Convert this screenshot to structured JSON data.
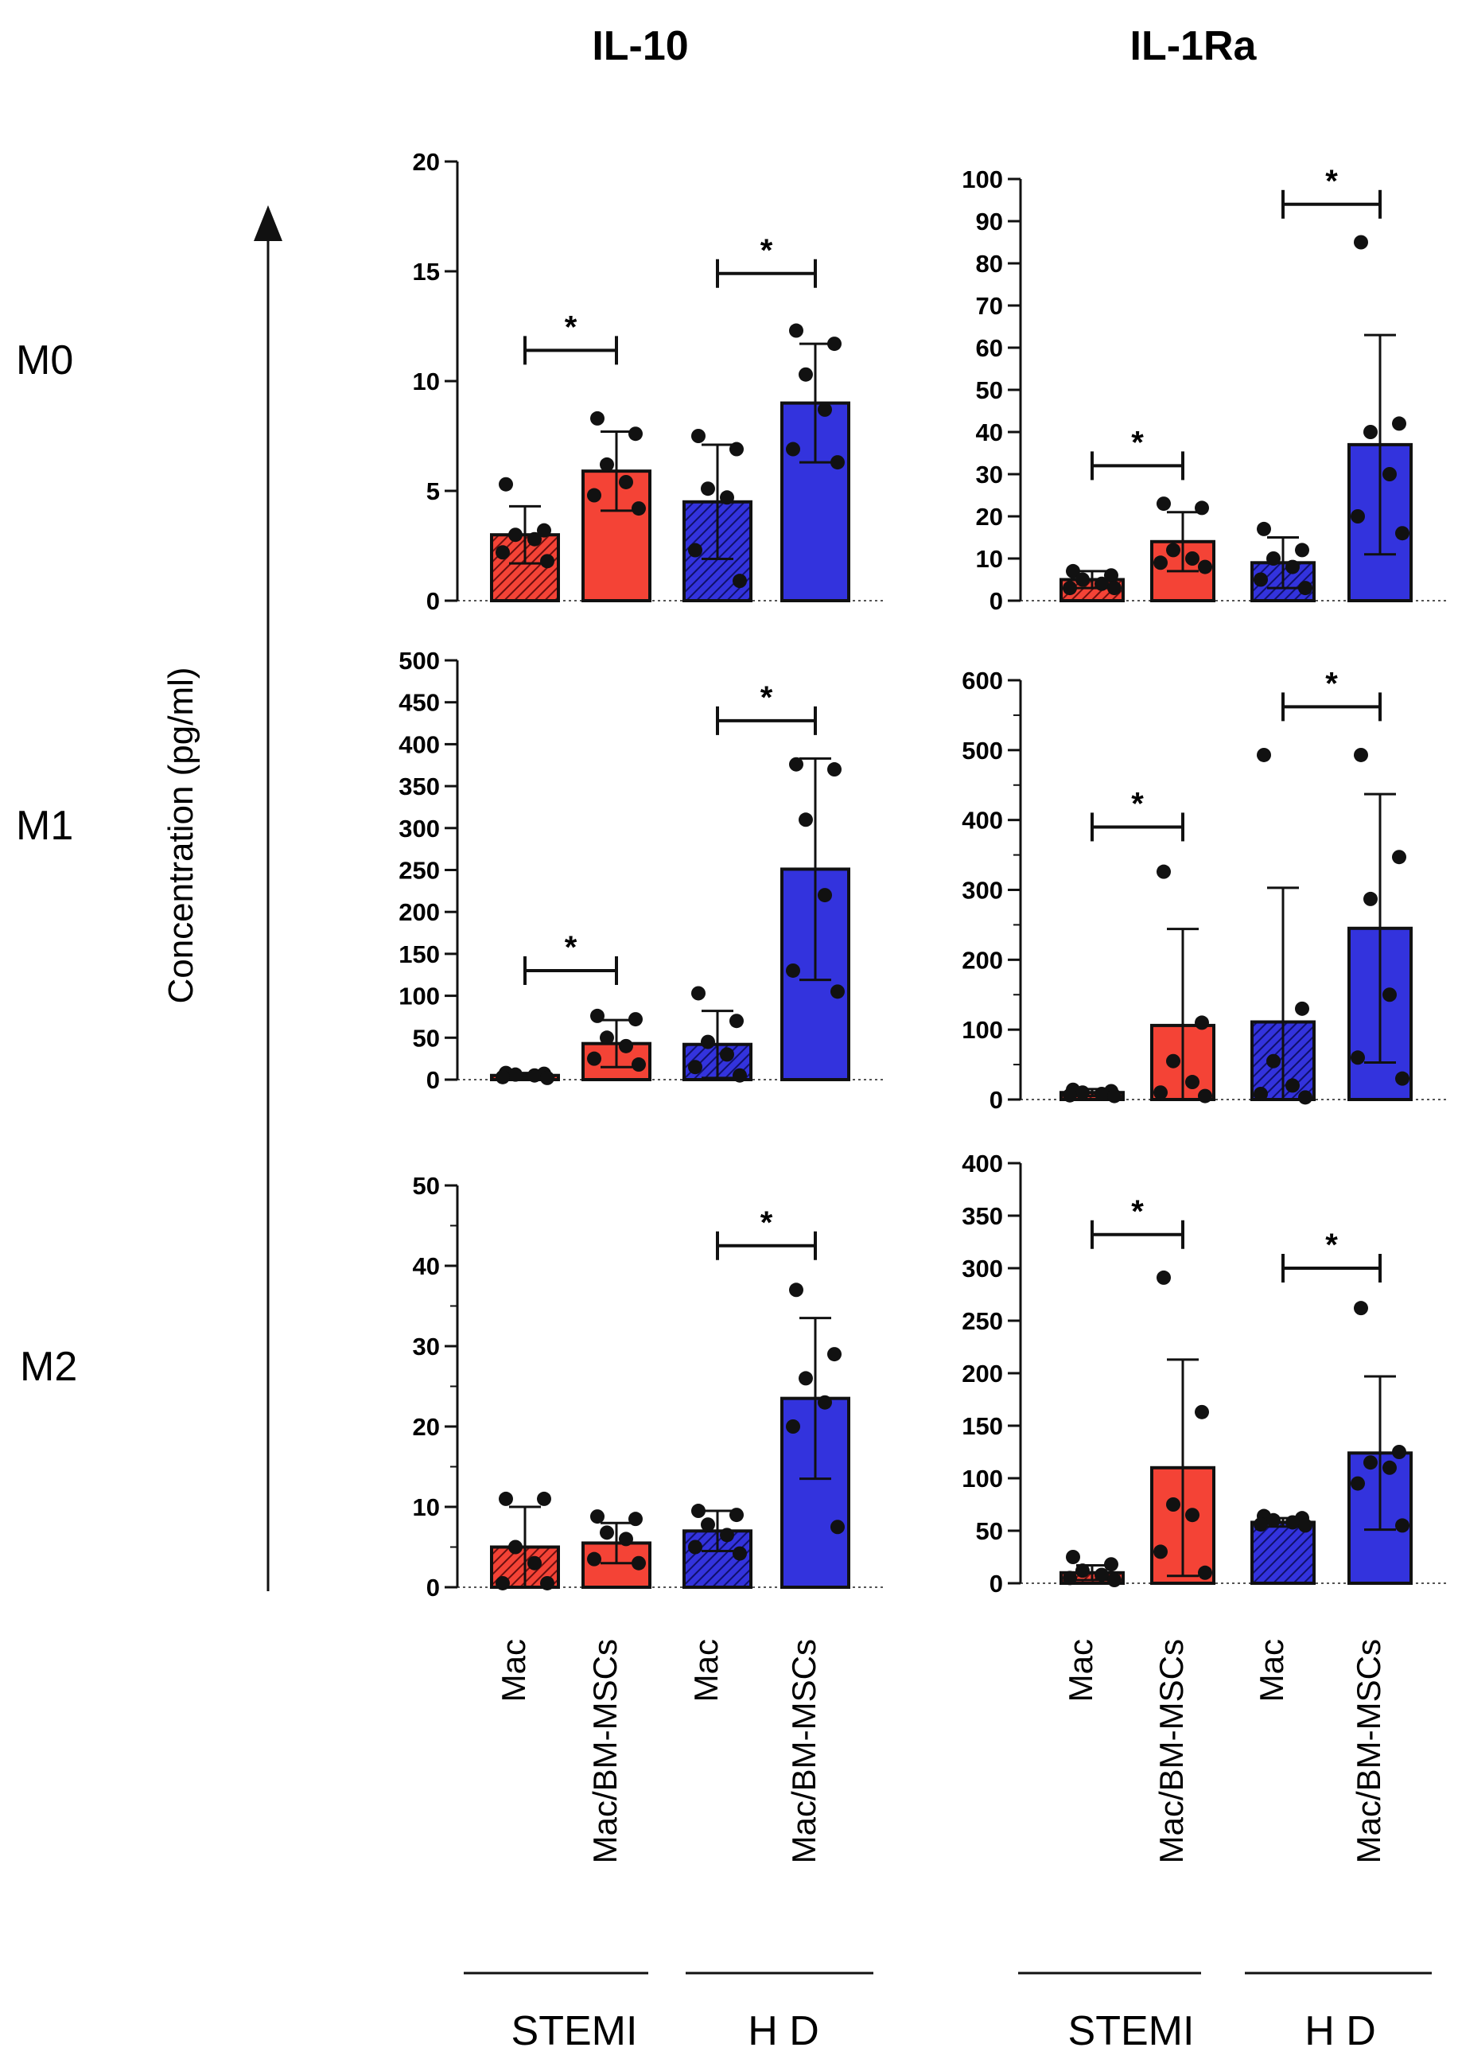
{
  "figure": {
    "column_titles": [
      "IL-10",
      "IL-1Ra"
    ],
    "row_labels": [
      "M0",
      "M1",
      "M2"
    ],
    "y_axis_label": "Concentration (pg/ml)",
    "x_categories": [
      "Mac",
      "Mac/BM-MSCs",
      "Mac",
      "Mac/BM-MSCs"
    ],
    "group_labels": [
      "STEMI",
      "H D"
    ],
    "significance_symbol": "*",
    "colors": {
      "stemi": "#f44336",
      "hd": "#3333dd",
      "edge": "#111111"
    }
  },
  "chart_data": [
    {
      "type": "bar",
      "title": "IL-10 M0",
      "ylim": [
        0,
        20
      ],
      "yticks": [
        0,
        5,
        10,
        15,
        20
      ],
      "minor_ticks": 0,
      "categories": [
        "Mac (STEMI)",
        "Mac/BM-MSCs (STEMI)",
        "Mac (H D)",
        "Mac/BM-MSCs (H D)"
      ],
      "values": [
        3.0,
        5.9,
        4.5,
        9.0
      ],
      "errors": [
        1.3,
        1.8,
        2.6,
        2.7
      ],
      "points": [
        [
          5.3,
          3.2,
          3.0,
          2.8,
          2.2,
          1.8
        ],
        [
          8.3,
          7.6,
          6.2,
          5.4,
          4.8,
          4.2
        ],
        [
          7.5,
          6.9,
          5.1,
          4.7,
          2.3,
          0.9
        ],
        [
          12.3,
          11.7,
          10.3,
          8.7,
          6.9,
          6.3
        ]
      ],
      "significance": [
        {
          "from": 0,
          "to": 1,
          "y": 11.4
        },
        {
          "from": 2,
          "to": 3,
          "y": 14.9
        }
      ]
    },
    {
      "type": "bar",
      "title": "IL-1Ra M0",
      "ylim": [
        0,
        100
      ],
      "yticks": [
        0,
        10,
        20,
        30,
        40,
        50,
        60,
        70,
        80,
        90,
        100
      ],
      "minor_ticks": 0,
      "categories": [
        "Mac (STEMI)",
        "Mac/BM-MSCs (STEMI)",
        "Mac (H D)",
        "Mac/BM-MSCs (H D)"
      ],
      "values": [
        5,
        14,
        9,
        37
      ],
      "errors": [
        2,
        7,
        6,
        26
      ],
      "points": [
        [
          7,
          6,
          5,
          4,
          3,
          3
        ],
        [
          23,
          22,
          12,
          10,
          9,
          8
        ],
        [
          17,
          12,
          10,
          8,
          5,
          3
        ],
        [
          85,
          42,
          40,
          30,
          20,
          16
        ]
      ],
      "significance": [
        {
          "from": 0,
          "to": 1,
          "y": 32
        },
        {
          "from": 2,
          "to": 3,
          "y": 94
        }
      ]
    },
    {
      "type": "bar",
      "title": "IL-10 M1",
      "ylim": [
        0,
        500
      ],
      "yticks": [
        0,
        50,
        100,
        150,
        200,
        250,
        300,
        350,
        400,
        450,
        500
      ],
      "minor_ticks": 0,
      "categories": [
        "Mac (STEMI)",
        "Mac/BM-MSCs (STEMI)",
        "Mac (H D)",
        "Mac/BM-MSCs (H D)"
      ],
      "values": [
        5,
        43,
        42,
        251
      ],
      "errors": [
        3,
        28,
        40,
        132
      ],
      "points": [
        [
          8,
          7,
          6,
          5,
          3,
          2
        ],
        [
          76,
          72,
          50,
          40,
          25,
          18
        ],
        [
          103,
          70,
          45,
          30,
          15,
          5
        ],
        [
          376,
          370,
          310,
          220,
          130,
          105
        ]
      ],
      "significance": [
        {
          "from": 0,
          "to": 1,
          "y": 130
        },
        {
          "from": 2,
          "to": 3,
          "y": 428
        }
      ]
    },
    {
      "type": "bar",
      "title": "IL-1Ra M1",
      "ylim": [
        0,
        600
      ],
      "yticks": [
        0,
        100,
        200,
        300,
        400,
        500,
        600
      ],
      "minor_ticks": 1,
      "categories": [
        "Mac (STEMI)",
        "Mac/BM-MSCs (STEMI)",
        "Mac (H D)",
        "Mac/BM-MSCs (H D)"
      ],
      "values": [
        10,
        106,
        111,
        245
      ],
      "errors": [
        5,
        138,
        192,
        192
      ],
      "points": [
        [
          14,
          12,
          10,
          8,
          6,
          5
        ],
        [
          326,
          110,
          55,
          25,
          10,
          5
        ],
        [
          493,
          130,
          55,
          20,
          8,
          3
        ],
        [
          493,
          347,
          287,
          150,
          60,
          30
        ]
      ],
      "significance": [
        {
          "from": 0,
          "to": 1,
          "y": 390
        },
        {
          "from": 2,
          "to": 3,
          "y": 562
        }
      ]
    },
    {
      "type": "bar",
      "title": "IL-10 M2",
      "ylim": [
        0,
        50
      ],
      "yticks": [
        0,
        10,
        20,
        30,
        40,
        50
      ],
      "minor_ticks": 1,
      "categories": [
        "Mac (STEMI)",
        "Mac/BM-MSCs (STEMI)",
        "Mac (H D)",
        "Mac/BM-MSCs (H D)"
      ],
      "values": [
        5,
        5.5,
        7,
        23.5
      ],
      "errors": [
        5,
        2.5,
        2.5,
        10
      ],
      "points": [
        [
          11,
          11,
          5,
          3,
          0.5,
          0.5
        ],
        [
          8.8,
          8.5,
          6.8,
          6.0,
          3.5,
          3.0
        ],
        [
          9.5,
          9.0,
          7.8,
          6.5,
          5.0,
          4.2
        ],
        [
          37,
          29,
          26,
          23,
          20,
          7.5
        ]
      ],
      "significance": [
        {
          "from": 2,
          "to": 3,
          "y": 42.5
        }
      ]
    },
    {
      "type": "bar",
      "title": "IL-1Ra M2",
      "ylim": [
        0,
        400
      ],
      "yticks": [
        0,
        50,
        100,
        150,
        200,
        250,
        300,
        350,
        400
      ],
      "minor_ticks": 0,
      "categories": [
        "Mac (STEMI)",
        "Mac/BM-MSCs (STEMI)",
        "Mac (H D)",
        "Mac/BM-MSCs (H D)"
      ],
      "values": [
        10,
        110,
        58,
        124
      ],
      "errors": [
        7,
        103,
        4,
        73
      ],
      "points": [
        [
          25,
          18,
          12,
          8,
          5,
          3
        ],
        [
          291,
          163,
          75,
          65,
          30,
          10
        ],
        [
          64,
          62,
          60,
          58,
          56,
          55
        ],
        [
          262,
          125,
          115,
          110,
          95,
          55
        ]
      ],
      "significance": [
        {
          "from": 0,
          "to": 1,
          "y": 332
        },
        {
          "from": 2,
          "to": 3,
          "y": 300
        }
      ]
    }
  ]
}
